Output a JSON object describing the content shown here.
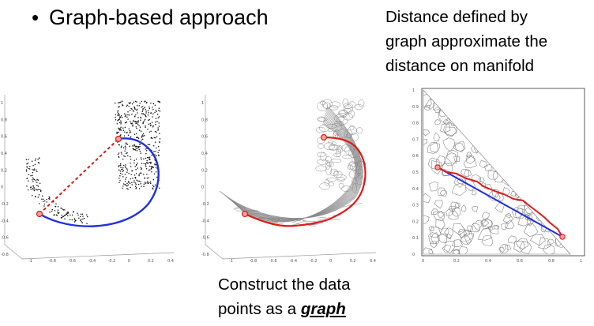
{
  "heading": {
    "bullet": "•",
    "text": "Graph-based approach"
  },
  "right_note": {
    "line1": "Distance defined by",
    "line2": "graph approximate the",
    "line3": "distance on manifold"
  },
  "bottom_note": {
    "line1": "Construct the data",
    "line2_prefix": "points as a ",
    "line2_emph": "graph"
  },
  "colors": {
    "geodesic_blue": "#1f2fe0",
    "graph_path_red": "#e01b1b",
    "euclid_dash_red": "#e01b1b",
    "point_black": "#111111",
    "mesh_gray": "#8a8a8a",
    "axis_gray": "#9a9a9a"
  },
  "panels": {
    "left": {
      "x_ticks": [
        "-1",
        "-0.8",
        "-0.6",
        "-0.4",
        "-0.2",
        "0",
        "0.2",
        "0.4"
      ],
      "y_ticks": [
        "1",
        "0.8",
        "0.6",
        "0.4",
        "0.2",
        "0",
        "-0.2",
        "-0.4",
        "-0.6",
        "-0.8"
      ]
    },
    "middle": {
      "x_ticks": [
        "-1",
        "-0.8",
        "-0.6",
        "-0.4",
        "-0.2",
        "0",
        "0.2",
        "0.4"
      ],
      "y_ticks": [
        "1",
        "0.8",
        "0.6",
        "0.4",
        "0.2",
        "0",
        "-0.2",
        "-0.4",
        "-0.6",
        "-0.8"
      ]
    },
    "right": {
      "x_ticks": [
        "0",
        "0.2",
        "0.4",
        "0.6",
        "0.8",
        "1"
      ],
      "y_ticks": [
        "1",
        "0.9",
        "0.8",
        "0.7",
        "0.6",
        "0.5",
        "0.4",
        "0.3",
        "0.2",
        "0.1",
        "0"
      ]
    }
  }
}
